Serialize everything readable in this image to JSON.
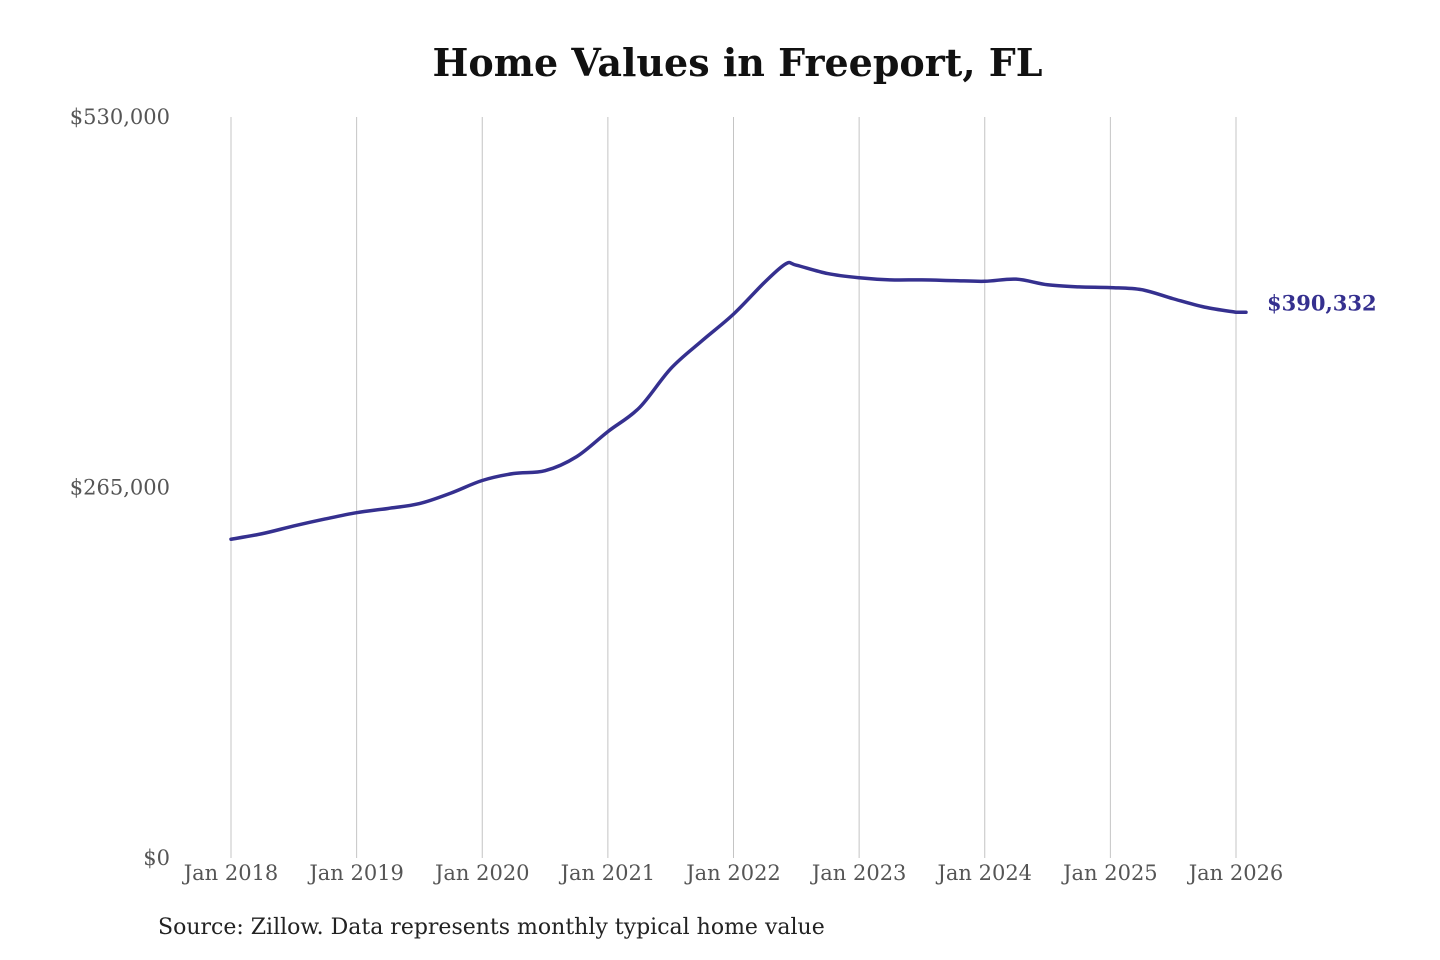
{
  "chart_data": {
    "type": "line",
    "title": "Home Values in Freeport, FL",
    "xlabel": "",
    "ylabel": "",
    "x_ticks": [
      "Jan 2018",
      "Jan 2019",
      "Jan 2020",
      "Jan 2021",
      "Jan 2022",
      "Jan 2023",
      "Jan 2024",
      "Jan 2025",
      "Jan 2026"
    ],
    "y_ticks": [
      "$0",
      "$265,000",
      "$530,000"
    ],
    "ylim": [
      0,
      530000
    ],
    "xlim": [
      "2018-01",
      "2026-01"
    ],
    "grid": "vertical",
    "line_color": "#35308f",
    "end_label": "$390,332",
    "series": [
      {
        "x": [
          "2018-01",
          "2018-04",
          "2018-07",
          "2018-10",
          "2019-01",
          "2019-04",
          "2019-07",
          "2019-10",
          "2020-01",
          "2020-04",
          "2020-07",
          "2020-10",
          "2021-01",
          "2021-04",
          "2021-07",
          "2021-10",
          "2022-01",
          "2022-04",
          "2022-06",
          "2022-07",
          "2022-10",
          "2023-01",
          "2023-04",
          "2023-07",
          "2023-10",
          "2024-01",
          "2024-04",
          "2024-07",
          "2024-10",
          "2025-01",
          "2025-04",
          "2025-07",
          "2025-10",
          "2026-01"
        ],
        "values": [
          228000,
          232000,
          237500,
          242500,
          247000,
          250000,
          253500,
          261000,
          270000,
          275000,
          277000,
          287000,
          305000,
          322000,
          350000,
          370000,
          389000,
          412000,
          425000,
          424000,
          418000,
          415000,
          413500,
          413500,
          413000,
          412500,
          414000,
          410000,
          408500,
          408000,
          406500,
          400000,
          394000,
          390332
        ]
      }
    ]
  },
  "footer": {
    "source": "Source: Zillow. Data represents monthly typical home value"
  }
}
